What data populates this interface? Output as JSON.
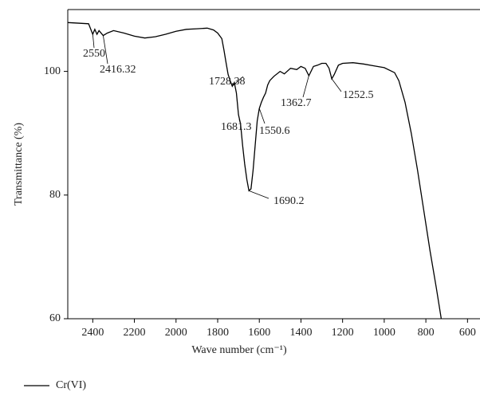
{
  "chart_data": {
    "type": "line",
    "xlabel": "Wave number (cm⁻¹)",
    "ylabel": "Transmittance (%)",
    "xlim": [
      2520,
      540
    ],
    "ylim": [
      60,
      110
    ],
    "xticks": [
      2400,
      2200,
      2000,
      1800,
      1600,
      1400,
      1200,
      1000,
      800,
      600
    ],
    "yticks": [
      60,
      80,
      100
    ],
    "series": [
      {
        "name": "Cr(VI)",
        "color": "#000000",
        "x": [
          2520,
          2420,
          2400,
          2390,
          2380,
          2370,
          2350,
          2330,
          2300,
          2250,
          2200,
          2150,
          2100,
          2050,
          2000,
          1950,
          1900,
          1850,
          1820,
          1800,
          1780,
          1770,
          1760,
          1750,
          1740,
          1730,
          1720,
          1710,
          1700,
          1690,
          1680,
          1670,
          1660,
          1650,
          1640,
          1630,
          1620,
          1610,
          1600,
          1590,
          1580,
          1570,
          1560,
          1550,
          1530,
          1500,
          1480,
          1450,
          1420,
          1400,
          1380,
          1362,
          1340,
          1320,
          1300,
          1280,
          1265,
          1252,
          1240,
          1220,
          1200,
          1150,
          1100,
          1050,
          1000,
          950,
          930,
          900,
          870,
          840,
          810,
          780,
          750,
          726
        ],
        "values": [
          107.9,
          107.7,
          106.0,
          106.8,
          106.0,
          106.6,
          105.8,
          106.2,
          106.6,
          106.2,
          105.7,
          105.4,
          105.6,
          106.0,
          106.5,
          106.8,
          106.9,
          107.0,
          106.7,
          106.2,
          105.3,
          103.5,
          101.5,
          99.5,
          98.5,
          97.6,
          98.2,
          96.5,
          93.0,
          91.5,
          88.0,
          85.0,
          82.5,
          80.7,
          81.0,
          84.0,
          88.0,
          92.0,
          94.0,
          95.0,
          95.8,
          96.5,
          97.8,
          98.5,
          99.2,
          100.0,
          99.6,
          100.5,
          100.3,
          100.8,
          100.5,
          99.3,
          100.8,
          101.0,
          101.3,
          101.3,
          100.5,
          98.8,
          99.5,
          101.0,
          101.3,
          101.4,
          101.2,
          100.9,
          100.6,
          99.8,
          98.5,
          95.0,
          90.0,
          84.0,
          77.5,
          71.0,
          65.0,
          60.0
        ]
      }
    ],
    "annotations": [
      {
        "text": "2550",
        "x": 2400,
        "y": 106.0
      },
      {
        "text": "2416.32",
        "x": 2350,
        "y": 105.8
      },
      {
        "text": "1728.38",
        "x": 1730,
        "y": 97.6
      },
      {
        "text": "1681.3",
        "x": 1690,
        "y": 91.5
      },
      {
        "text": "1550.6",
        "x": 1600,
        "y": 94.0
      },
      {
        "text": "1690.2",
        "x": 1650,
        "y": 80.7
      },
      {
        "text": "1362.7",
        "x": 1362,
        "y": 99.3
      },
      {
        "text": "1252.5",
        "x": 1252,
        "y": 98.8
      }
    ]
  }
}
